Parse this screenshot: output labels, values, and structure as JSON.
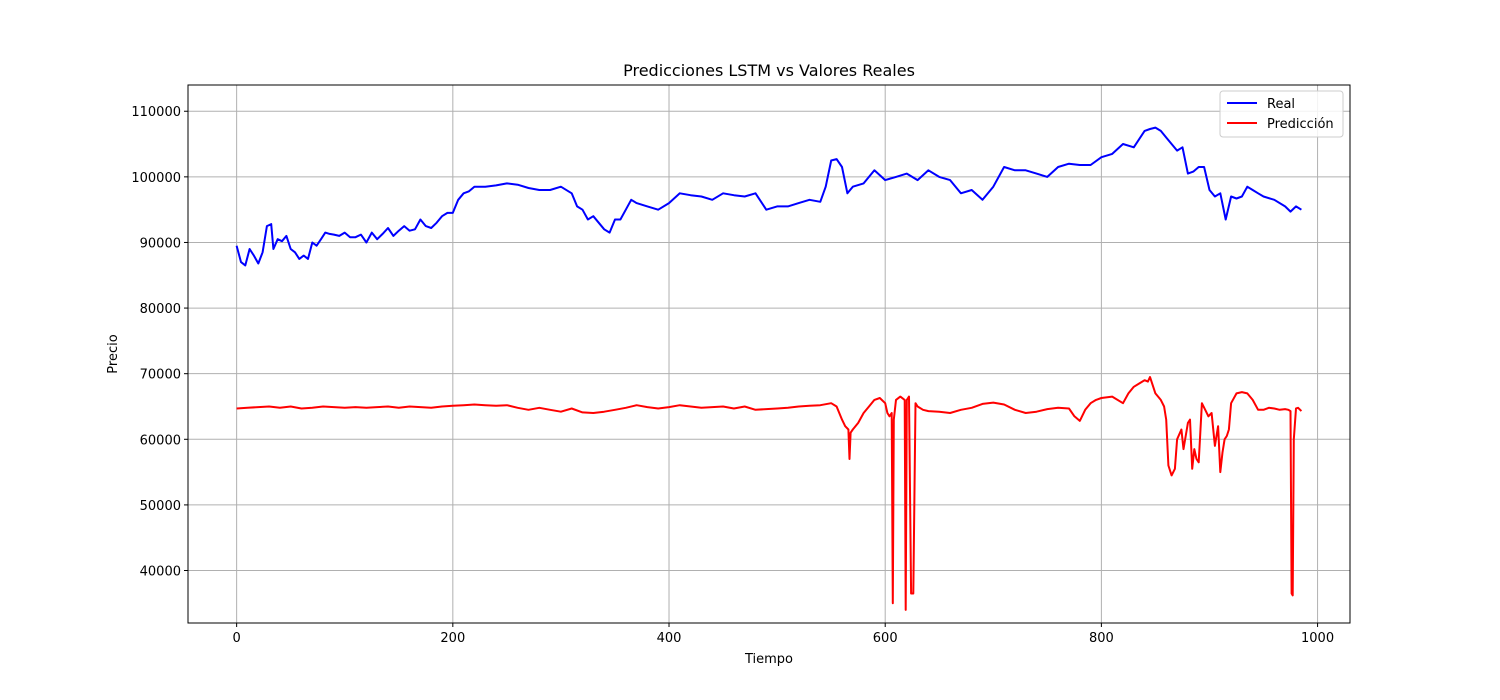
{
  "chart_data": {
    "type": "line",
    "title": "Predicciones LSTM vs Valores Reales",
    "xlabel": "Tiempo",
    "ylabel": "Precio",
    "xlim": [
      -45,
      1030
    ],
    "ylim": [
      32000,
      114000
    ],
    "xticks": [
      0,
      200,
      400,
      600,
      800,
      1000
    ],
    "yticks": [
      40000,
      50000,
      60000,
      70000,
      80000,
      90000,
      100000,
      110000
    ],
    "grid": true,
    "legend": "top-right",
    "series": [
      {
        "name": "Real",
        "color": "#0000ff",
        "x": [
          0,
          4,
          8,
          12,
          16,
          20,
          24,
          28,
          32,
          34,
          38,
          42,
          46,
          50,
          54,
          58,
          62,
          66,
          70,
          74,
          78,
          82,
          86,
          90,
          95,
          100,
          105,
          110,
          115,
          120,
          125,
          130,
          135,
          140,
          145,
          150,
          155,
          160,
          165,
          170,
          175,
          180,
          185,
          190,
          195,
          200,
          205,
          210,
          215,
          220,
          230,
          240,
          250,
          260,
          270,
          280,
          290,
          300,
          310,
          315,
          320,
          325,
          330,
          335,
          340,
          345,
          350,
          355,
          360,
          365,
          370,
          380,
          390,
          400,
          410,
          420,
          430,
          440,
          450,
          460,
          470,
          480,
          490,
          500,
          510,
          520,
          530,
          540,
          545,
          550,
          555,
          560,
          565,
          570,
          580,
          590,
          600,
          610,
          620,
          630,
          640,
          650,
          660,
          670,
          680,
          690,
          700,
          710,
          720,
          730,
          740,
          750,
          760,
          770,
          780,
          790,
          800,
          810,
          820,
          830,
          840,
          845,
          850,
          855,
          860,
          865,
          870,
          875,
          880,
          885,
          890,
          895,
          900,
          905,
          910,
          915,
          920,
          925,
          930,
          935,
          940,
          945,
          950,
          960,
          970,
          975,
          980,
          985
        ],
        "y": [
          89500,
          87000,
          86500,
          89000,
          88000,
          86800,
          88500,
          92500,
          92800,
          89000,
          90500,
          90200,
          91000,
          89000,
          88500,
          87500,
          88000,
          87500,
          90000,
          89500,
          90500,
          91500,
          91300,
          91200,
          91000,
          91500,
          90800,
          90800,
          91200,
          90000,
          91500,
          90500,
          91300,
          92200,
          91000,
          91800,
          92500,
          91800,
          92000,
          93500,
          92500,
          92200,
          93000,
          94000,
          94500,
          94500,
          96500,
          97500,
          97800,
          98500,
          98500,
          98700,
          99000,
          98800,
          98300,
          98000,
          98000,
          98500,
          97500,
          95500,
          95000,
          93500,
          94000,
          93000,
          92000,
          91500,
          93500,
          93500,
          95000,
          96500,
          96000,
          95500,
          95000,
          96000,
          97500,
          97200,
          97000,
          96500,
          97500,
          97200,
          97000,
          97500,
          95000,
          95500,
          95500,
          96000,
          96500,
          96200,
          98500,
          102500,
          102700,
          101500,
          97500,
          98500,
          99000,
          101000,
          99500,
          100000,
          100500,
          99500,
          101000,
          100000,
          99500,
          97500,
          98000,
          96500,
          98500,
          101500,
          101000,
          101000,
          100500,
          100000,
          101500,
          102000,
          101800,
          101800,
          103000,
          103500,
          105000,
          104500,
          107000,
          107300,
          107500,
          107000,
          106000,
          105000,
          104000,
          104500,
          100500,
          100800,
          101500,
          101500,
          98000,
          97000,
          97500,
          93500,
          97000,
          96700,
          97000,
          98500,
          98000,
          97500,
          97000,
          96500,
          95500,
          94700,
          95500,
          95000
        ]
      },
      {
        "name": "Predicción",
        "color": "#ff0000",
        "x": [
          0,
          10,
          20,
          30,
          40,
          50,
          60,
          70,
          80,
          90,
          100,
          110,
          120,
          130,
          140,
          150,
          160,
          170,
          180,
          190,
          200,
          210,
          220,
          230,
          240,
          250,
          260,
          270,
          280,
          290,
          300,
          310,
          320,
          330,
          340,
          350,
          360,
          370,
          380,
          390,
          400,
          410,
          420,
          430,
          440,
          450,
          460,
          470,
          480,
          490,
          500,
          510,
          520,
          530,
          540,
          550,
          555,
          560,
          563,
          566,
          567,
          568,
          570,
          575,
          580,
          585,
          590,
          595,
          600,
          602,
          604,
          606,
          607,
          608,
          610,
          614,
          618,
          619,
          620,
          622,
          624,
          626,
          628,
          630,
          635,
          640,
          650,
          660,
          670,
          680,
          690,
          700,
          710,
          720,
          730,
          740,
          750,
          760,
          770,
          775,
          780,
          785,
          790,
          795,
          800,
          810,
          820,
          825,
          830,
          835,
          840,
          843,
          845,
          850,
          855,
          858,
          860,
          862,
          865,
          868,
          870,
          874,
          876,
          878,
          880,
          882,
          884,
          886,
          888,
          890,
          893,
          896,
          899,
          902,
          905,
          908,
          910,
          912,
          914,
          916,
          918,
          920,
          925,
          930,
          935,
          940,
          945,
          950,
          955,
          960,
          965,
          970,
          973,
          975,
          976,
          977,
          978,
          980,
          982,
          985
        ],
        "y": [
          64700,
          64800,
          64900,
          65000,
          64800,
          65000,
          64700,
          64800,
          65000,
          64900,
          64800,
          64900,
          64800,
          64900,
          65000,
          64800,
          65000,
          64900,
          64800,
          65000,
          65100,
          65200,
          65300,
          65200,
          65100,
          65200,
          64800,
          64500,
          64800,
          64500,
          64200,
          64700,
          64100,
          64000,
          64200,
          64500,
          64800,
          65200,
          64900,
          64700,
          64900,
          65200,
          65000,
          64800,
          64900,
          65000,
          64700,
          65000,
          64500,
          64600,
          64700,
          64800,
          65000,
          65100,
          65200,
          65500,
          65000,
          63000,
          62000,
          61500,
          57000,
          61000,
          61500,
          62500,
          64000,
          65000,
          66000,
          66300,
          65500,
          64000,
          63500,
          64000,
          35000,
          63000,
          66000,
          66500,
          66000,
          34000,
          66000,
          66500,
          36500,
          36500,
          65500,
          65000,
          64500,
          64300,
          64200,
          64000,
          64500,
          64800,
          65400,
          65600,
          65300,
          64500,
          64000,
          64200,
          64600,
          64800,
          64700,
          63500,
          62800,
          64500,
          65500,
          66000,
          66300,
          66500,
          65500,
          67000,
          68000,
          68500,
          69000,
          68800,
          69500,
          67000,
          66000,
          65000,
          63000,
          56000,
          54500,
          55500,
          60000,
          61500,
          58500,
          60500,
          62500,
          63000,
          55500,
          58500,
          57000,
          56500,
          65500,
          64500,
          63500,
          64000,
          59000,
          62000,
          55000,
          58000,
          60000,
          60500,
          61500,
          65500,
          67000,
          67200,
          67000,
          66000,
          64500,
          64500,
          64800,
          64700,
          64500,
          64600,
          64500,
          64300,
          36500,
          36200,
          60000,
          64700,
          64800,
          64300
        ]
      }
    ]
  }
}
